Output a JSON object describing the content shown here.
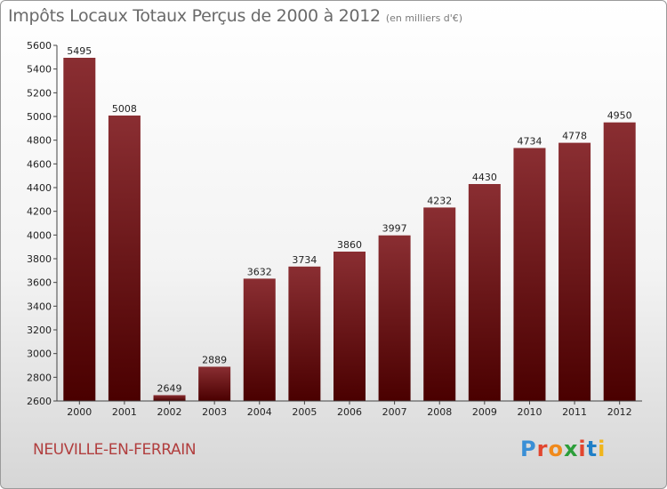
{
  "header": {
    "title": "Impôts Locaux Totaux Perçus de 2000 à 2012",
    "unit": "(en milliers d'€)"
  },
  "place_name": "NEUVILLE-EN-FERRAIN",
  "logo": {
    "text": "Proxiti",
    "letter_colors": [
      "#3a8fd6",
      "#e2462f",
      "#f08a1c",
      "#2c9e3a",
      "#e2462f",
      "#1f7fc7",
      "#f0b51c"
    ]
  },
  "colors": {
    "bar_top": "#8a2e32",
    "bar_bottom": "#4a0000",
    "title": "#6a6a6a",
    "place": "#b13e3e"
  },
  "chart_data": {
    "type": "bar",
    "title": "Impôts Locaux Totaux Perçus de 2000 à 2012",
    "subtitle": "(en milliers d'€)",
    "xlabel": "",
    "ylabel": "",
    "categories": [
      "2000",
      "2001",
      "2002",
      "2003",
      "2004",
      "2005",
      "2006",
      "2007",
      "2008",
      "2009",
      "2010",
      "2011",
      "2012"
    ],
    "values": [
      5495,
      5008,
      2649,
      2889,
      3632,
      3734,
      3860,
      3997,
      4232,
      4430,
      4734,
      4778,
      4950
    ],
    "ylim": [
      2600,
      5600
    ],
    "yticks": [
      2600,
      2800,
      3000,
      3200,
      3400,
      3600,
      3800,
      4000,
      4200,
      4400,
      4600,
      4800,
      5000,
      5200,
      5400,
      5600
    ],
    "grid": false,
    "legend": "none"
  }
}
